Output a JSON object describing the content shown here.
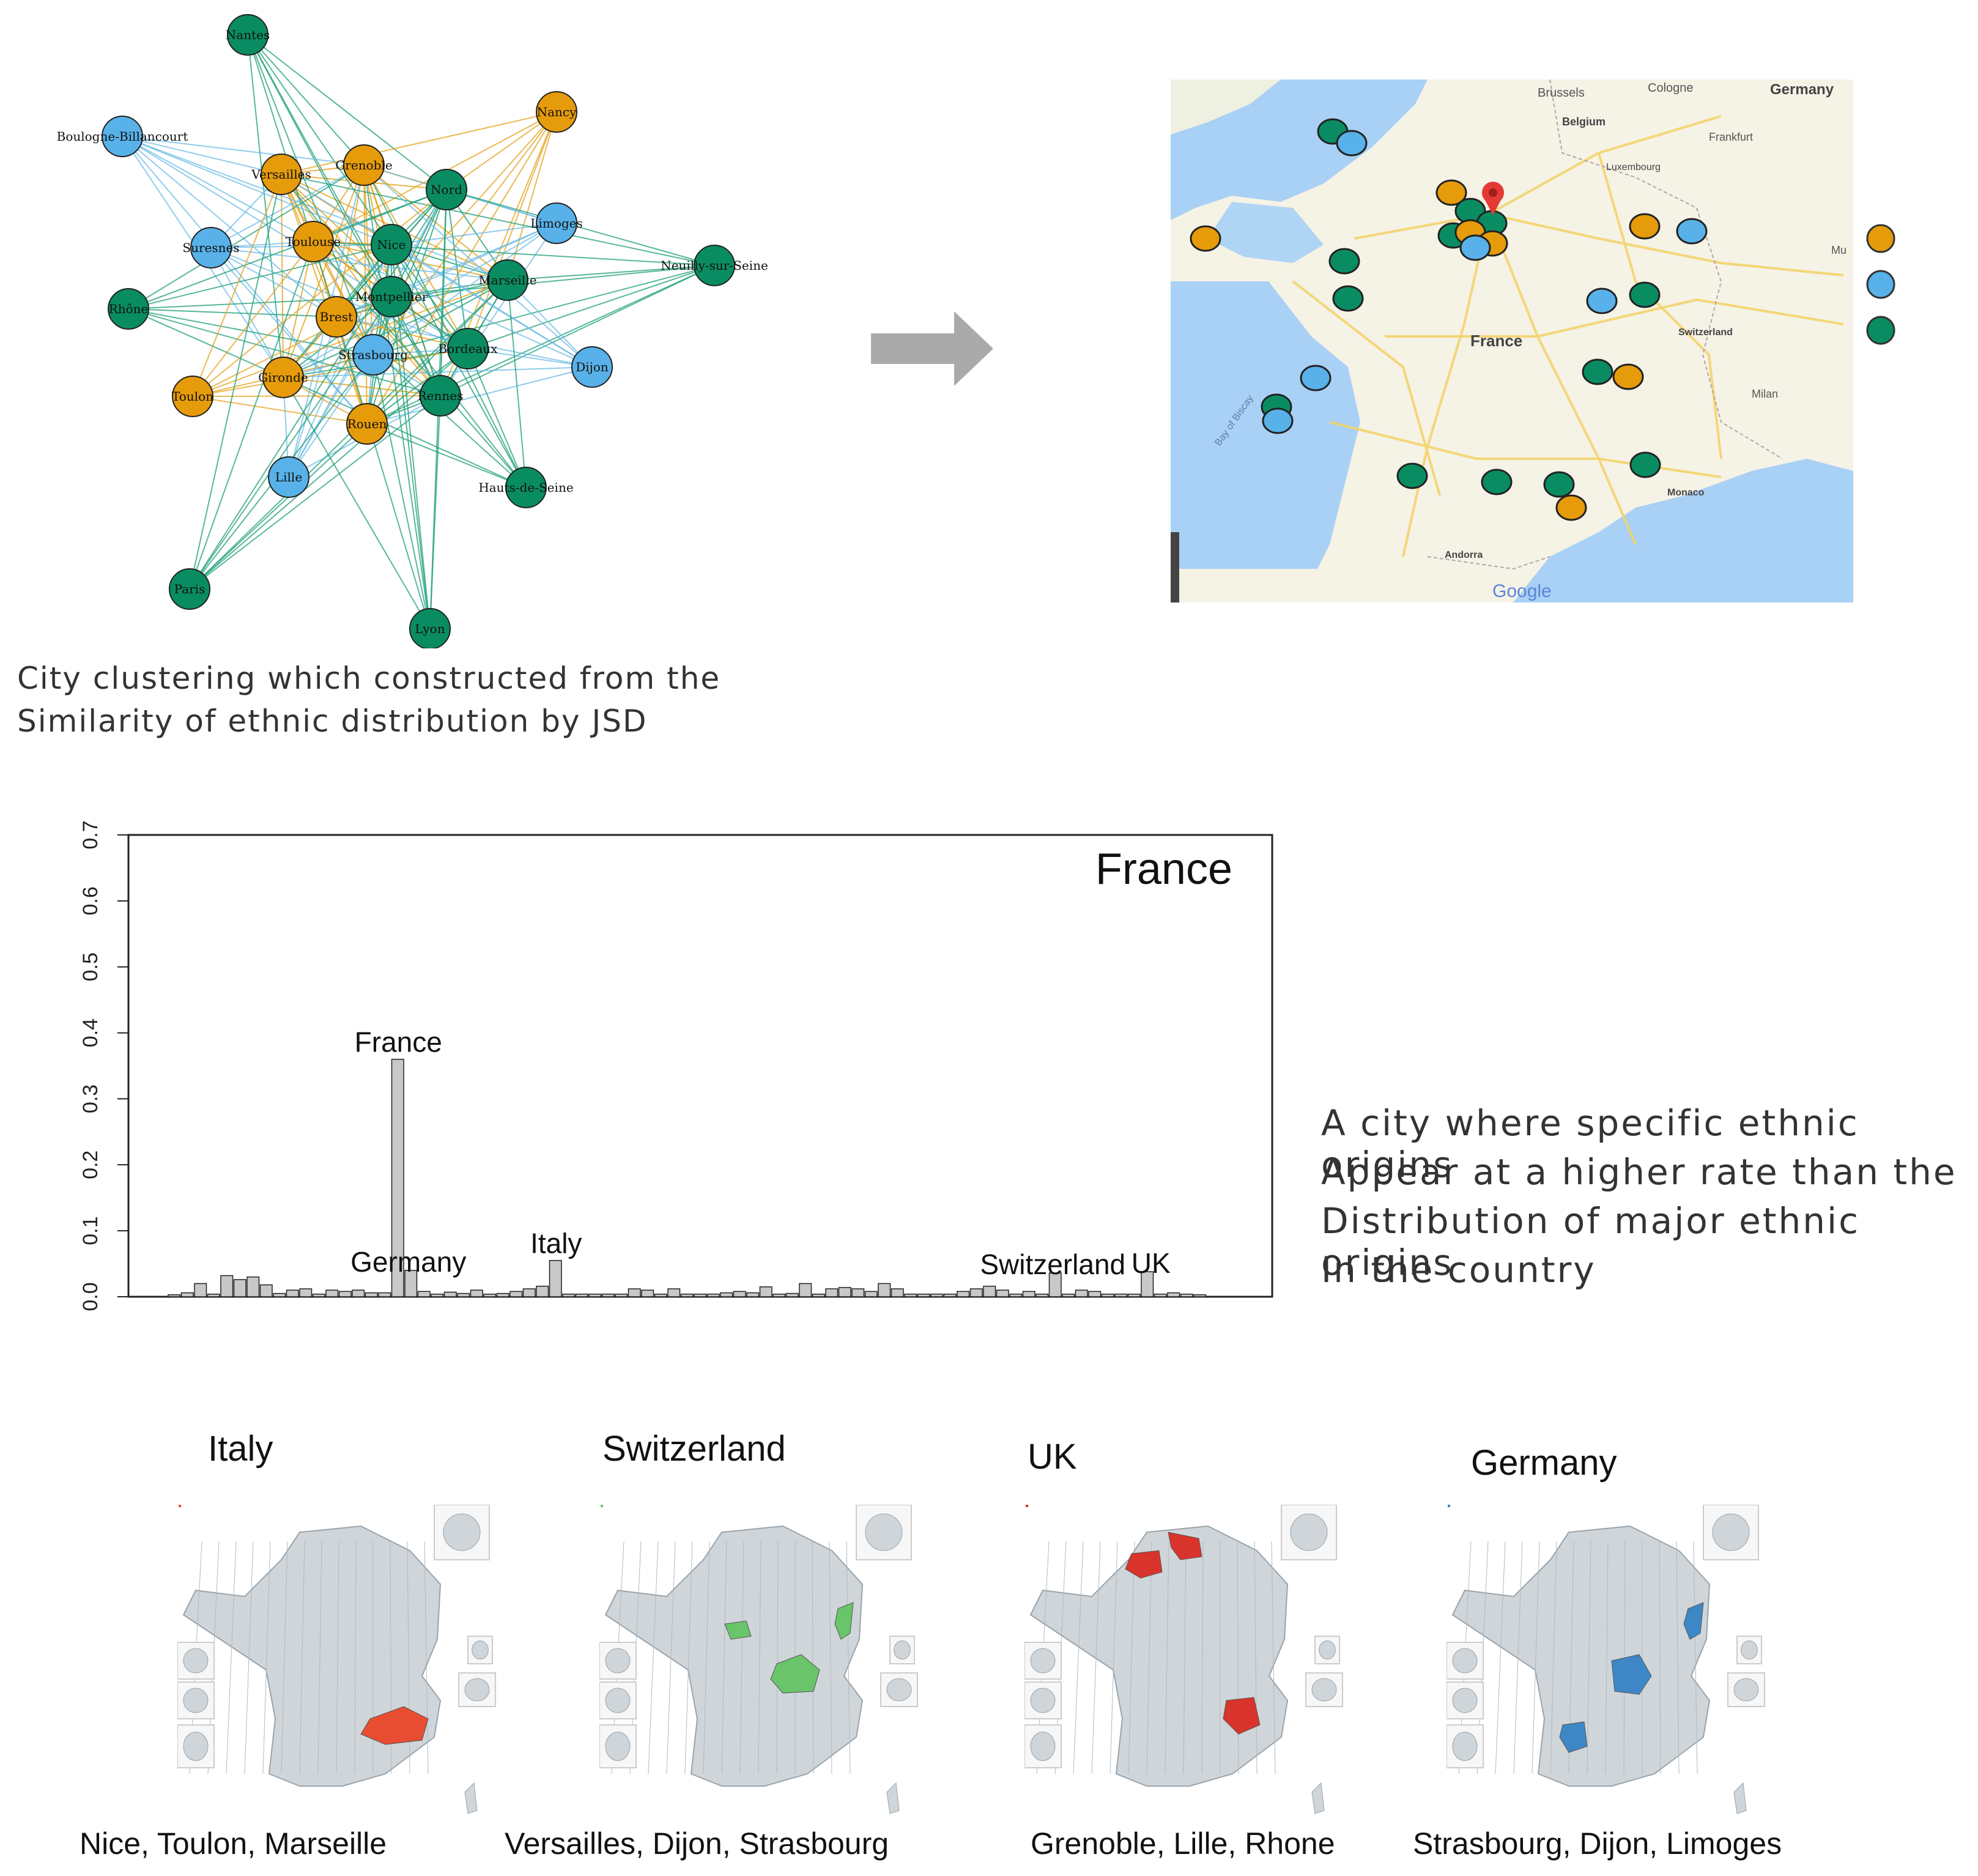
{
  "network": {
    "nodes": [
      {
        "label": "Nantes",
        "cluster": "green"
      },
      {
        "label": "Boulogne-Billancourt",
        "cluster": "blue"
      },
      {
        "label": "Nancy",
        "cluster": "orange"
      },
      {
        "label": "Versailles",
        "cluster": "orange"
      },
      {
        "label": "Grenoble",
        "cluster": "orange"
      },
      {
        "label": "Nord",
        "cluster": "green"
      },
      {
        "label": "Limoges",
        "cluster": "blue"
      },
      {
        "label": "Suresnes",
        "cluster": "blue"
      },
      {
        "label": "Toulouse",
        "cluster": "orange"
      },
      {
        "label": "Nice",
        "cluster": "green"
      },
      {
        "label": "Neuilly-sur-Seine",
        "cluster": "green"
      },
      {
        "label": "Rhône",
        "cluster": "green"
      },
      {
        "label": "Montpellier",
        "cluster": "green"
      },
      {
        "label": "Marseille",
        "cluster": "green"
      },
      {
        "label": "Brest",
        "cluster": "orange"
      },
      {
        "label": "Strasbourg",
        "cluster": "blue"
      },
      {
        "label": "Bordeaux",
        "cluster": "green"
      },
      {
        "label": "Dijon",
        "cluster": "blue"
      },
      {
        "label": "Toulon",
        "cluster": "orange"
      },
      {
        "label": "Gironde",
        "cluster": "orange"
      },
      {
        "label": "Rennes",
        "cluster": "green"
      },
      {
        "label": "Rouen",
        "cluster": "orange"
      },
      {
        "label": "Lille",
        "cluster": "blue"
      },
      {
        "label": "Hauts-de-Seine",
        "cluster": "green"
      },
      {
        "label": "Paris",
        "cluster": "green"
      },
      {
        "label": "Lyon",
        "cluster": "green"
      }
    ],
    "caption_line1": "City clustering which constructed from the",
    "caption_line2": "Similarity of ethnic distribution by JSD"
  },
  "colors": {
    "green": "#0a8c62",
    "blue": "#58b1e8",
    "orange": "#e59b0a",
    "edge_green": "#1fa07a",
    "edge_blue": "#6cbbe6",
    "edge_orange": "#e5a21b",
    "arrow": "#aaaaaa",
    "map_land": "#f5f2e6",
    "map_sea": "#a9d0f5",
    "france_red": "#e84d31",
    "france_green": "#6ac46a",
    "france_blue": "#3d87c7",
    "france_grey": "#cfd5d9"
  },
  "map": {
    "labels": {
      "brussels": "Brussels",
      "cologne": "Cologne",
      "germany": "Germany",
      "belgium": "Belgium",
      "frankfurt": "Frankfurt",
      "luxembourg": "Luxembourg",
      "france": "France",
      "switzerland": "Switzerland",
      "milan": "Milan",
      "bay": "Bay of Biscay",
      "monaco": "Monaco",
      "andorra": "Andorra",
      "mu": "Mu"
    },
    "logo": "Google"
  },
  "chart_data": {
    "type": "bar",
    "title": "France",
    "xlabel": "",
    "ylabel": "",
    "ylim": [
      0,
      0.7
    ],
    "yticks": [
      "0.0",
      "0.1",
      "0.2",
      "0.3",
      "0.4",
      "0.5",
      "0.6",
      "0.7"
    ],
    "values": [
      0.003,
      0.006,
      0.02,
      0.004,
      0.032,
      0.026,
      0.03,
      0.018,
      0.005,
      0.01,
      0.012,
      0.004,
      0.01,
      0.008,
      0.01,
      0.006,
      0.006,
      0.36,
      0.04,
      0.008,
      0.004,
      0.007,
      0.005,
      0.01,
      0.004,
      0.005,
      0.008,
      0.012,
      0.016,
      0.055,
      0.004,
      0.004,
      0.004,
      0.004,
      0.004,
      0.012,
      0.01,
      0.004,
      0.012,
      0.004,
      0.004,
      0.004,
      0.006,
      0.008,
      0.006,
      0.015,
      0.004,
      0.005,
      0.02,
      0.004,
      0.012,
      0.014,
      0.012,
      0.008,
      0.02,
      0.012,
      0.004,
      0.004,
      0.004,
      0.004,
      0.008,
      0.012,
      0.016,
      0.01,
      0.004,
      0.008,
      0.004,
      0.036,
      0.004,
      0.01,
      0.008,
      0.004,
      0.004,
      0.004,
      0.038,
      0.004,
      0.006,
      0.004,
      0.003
    ],
    "annotations": [
      {
        "label": "France",
        "index": 17
      },
      {
        "label": "Germany",
        "index": 18
      },
      {
        "label": "Italy",
        "index": 29
      },
      {
        "label": "Switzerland",
        "index": 67
      },
      {
        "label": "UK",
        "index": 74
      }
    ]
  },
  "description": {
    "line1": "A city where specific ethnic origins",
    "line2": "Appear at a higher rate than the",
    "line3": "Distribution of major ethnic origins",
    "line4": "In the country"
  },
  "choropleths": [
    {
      "title": "Italy",
      "cities": "Nice, Toulon, Marseille",
      "color": "#e84d31"
    },
    {
      "title": "Switzerland",
      "cities": "Versailles, Dijon, Strasbourg",
      "color": "#6ac46a"
    },
    {
      "title": "UK",
      "cities": "Grenoble, Lille, Rhone",
      "color": "#d9342b"
    },
    {
      "title": "Germany",
      "cities": "Strasbourg, Dijon, Limoges",
      "color": "#3d87c7"
    }
  ]
}
